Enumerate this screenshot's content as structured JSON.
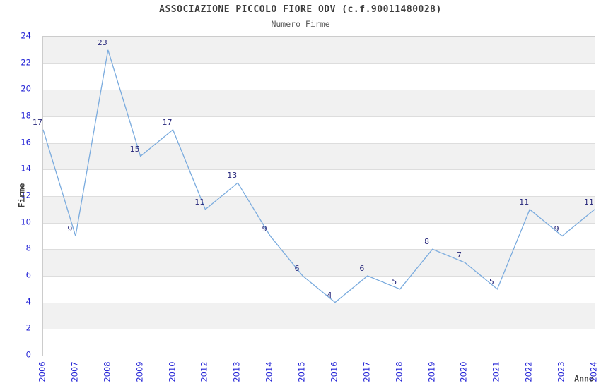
{
  "chart_data": {
    "type": "line",
    "title": "ASSOCIAZIONE PICCOLO FIORE ODV (c.f.90011480028)",
    "subtitle": "Numero Firme",
    "xlabel": "Anno",
    "ylabel": "Firme",
    "categories": [
      "2006",
      "2007",
      "2008",
      "2009",
      "2010",
      "2012",
      "2013",
      "2014",
      "2015",
      "2016",
      "2017",
      "2018",
      "2019",
      "2020",
      "2021",
      "2022",
      "2023",
      "2024"
    ],
    "values": [
      17,
      9,
      23,
      15,
      17,
      11,
      13,
      9,
      6,
      4,
      6,
      5,
      8,
      7,
      5,
      11,
      9,
      11
    ],
    "ylim": [
      0,
      24
    ],
    "ytick_interval": 2,
    "grid": true,
    "legend": false,
    "show_point_labels": true,
    "colors": {
      "line": "#7aabde",
      "tick_label": "#2323d6",
      "value_label": "#26267a",
      "band": "#f1f1f1",
      "gridline": "#dddddd",
      "plot_border": "#cccccc",
      "background": "#ffffff"
    }
  }
}
